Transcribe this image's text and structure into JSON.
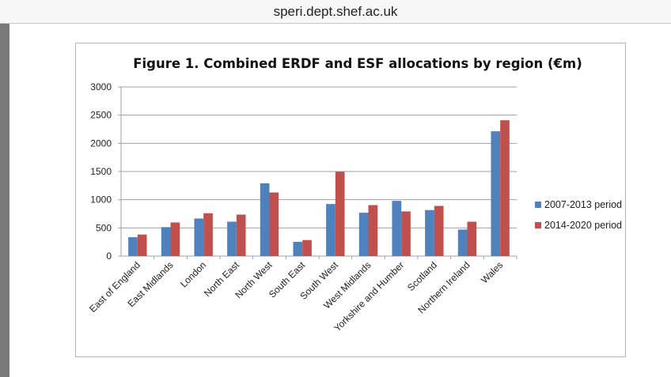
{
  "browser": {
    "url": "speri.dept.shef.ac.uk"
  },
  "chart_data": {
    "type": "bar",
    "title": "Figure 1. Combined ERDF and ESF allocations by region (€m)",
    "xlabel": "",
    "ylabel": "",
    "ylim": [
      0,
      3000
    ],
    "yticks": [
      0,
      500,
      1000,
      1500,
      2000,
      2500,
      3000
    ],
    "grid": true,
    "legend_position": "right",
    "categories": [
      "East of England",
      "East Midlands",
      "London",
      "North East",
      "North West",
      "South East",
      "South West",
      "West Midlands",
      "Yorkshire and Humber",
      "Scotland",
      "Northern Ireland",
      "Wales"
    ],
    "series": [
      {
        "name": "2007-2013 period",
        "color": "#4f81bd",
        "values": [
          335,
          513,
          666,
          610,
          1291,
          252,
          923,
          769,
          979,
          816,
          471,
          2213
        ]
      },
      {
        "name": "2014-2020 period",
        "color": "#c0504d",
        "values": [
          382,
          596,
          760,
          736,
          1128,
          284,
          1496,
          904,
          792,
          890,
          610,
          2409
        ]
      }
    ]
  }
}
